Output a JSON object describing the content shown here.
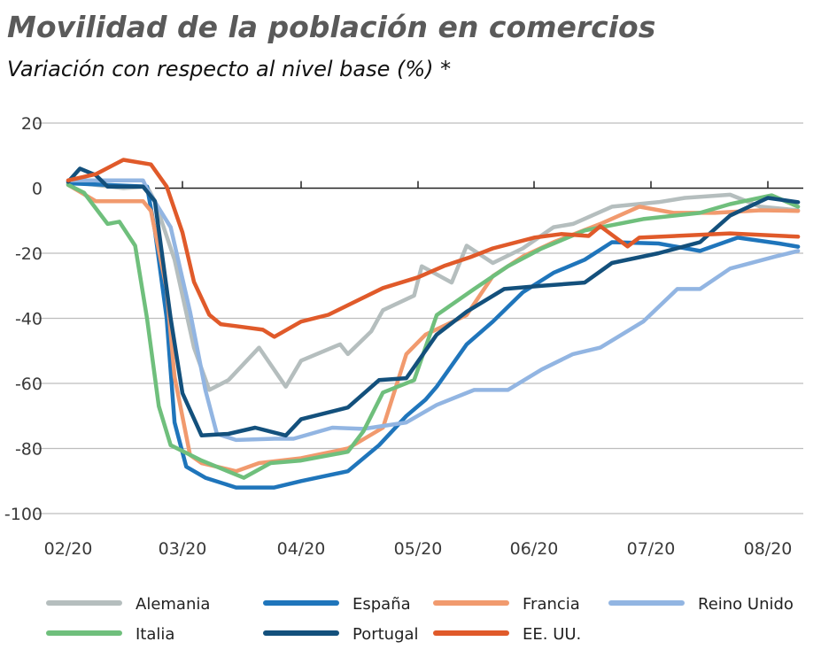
{
  "chart_data": {
    "type": "line",
    "title": "Movilidad de la población en comercios",
    "subtitle": "Variación con respecto al nivel base (%) *",
    "xlabel": "",
    "ylabel": "",
    "ylim": [
      -100,
      20
    ],
    "yticks": [
      20,
      0,
      -20,
      -40,
      -60,
      -80,
      -100
    ],
    "xticks": [
      {
        "label": "02/20",
        "date": "02-01"
      },
      {
        "label": "03/20",
        "date": "03-01"
      },
      {
        "label": "04/20",
        "date": "04-01"
      },
      {
        "label": "05/20",
        "date": "05-01"
      },
      {
        "label": "06/20",
        "date": "06-01"
      },
      {
        "label": "07/20",
        "date": "07-01"
      },
      {
        "label": "08/20",
        "date": "08-01"
      }
    ],
    "grid": true,
    "legend_position": "bottom",
    "series": [
      {
        "name": "Alemania",
        "color": "#b5bebe",
        "points": [
          [
            "02-01",
            2
          ],
          [
            "02-15",
            0
          ],
          [
            "02-21",
            0.5
          ],
          [
            "02-23",
            -4
          ],
          [
            "02-28",
            -22
          ],
          [
            "03-04",
            -49
          ],
          [
            "03-08",
            -62
          ],
          [
            "03-13",
            -59
          ],
          [
            "03-21",
            -49
          ],
          [
            "03-28",
            -61
          ],
          [
            "04-01",
            -53
          ],
          [
            "04-11",
            -48
          ],
          [
            "04-13",
            -51
          ],
          [
            "04-19",
            -44
          ],
          [
            "04-22",
            -37.5
          ],
          [
            "04-30",
            -33
          ],
          [
            "05-02",
            -24
          ],
          [
            "05-10",
            -29
          ],
          [
            "05-14",
            -17.7
          ],
          [
            "05-21",
            -23
          ],
          [
            "05-29",
            -18.5
          ],
          [
            "06-06",
            -12
          ],
          [
            "06-11",
            -11
          ],
          [
            "06-21",
            -5.7
          ],
          [
            "07-03",
            -4.3
          ],
          [
            "07-10",
            -3
          ],
          [
            "07-22",
            -2
          ],
          [
            "07-30",
            -5.7
          ],
          [
            "08-09",
            -6.8
          ]
        ]
      },
      {
        "name": "España",
        "color": "#1f75bb",
        "points": [
          [
            "02-01",
            1.5
          ],
          [
            "02-21",
            0.5
          ],
          [
            "02-23",
            -13
          ],
          [
            "02-26",
            -40
          ],
          [
            "02-28",
            -72
          ],
          [
            "03-02",
            -85.6
          ],
          [
            "03-07",
            -89
          ],
          [
            "03-15",
            -92
          ],
          [
            "03-25",
            -92
          ],
          [
            "04-01",
            -90
          ],
          [
            "04-13",
            -87
          ],
          [
            "04-21",
            -79
          ],
          [
            "04-28",
            -70
          ],
          [
            "05-03",
            -65
          ],
          [
            "05-06",
            -61
          ],
          [
            "05-14",
            -48
          ],
          [
            "05-21",
            -41
          ],
          [
            "05-29",
            -32
          ],
          [
            "06-06",
            -26
          ],
          [
            "06-14",
            -22
          ],
          [
            "06-21",
            -16.6
          ],
          [
            "07-03",
            -17
          ],
          [
            "07-14",
            -19.3
          ],
          [
            "07-24",
            -15.2
          ],
          [
            "08-04",
            -17
          ],
          [
            "08-09",
            -18
          ]
        ]
      },
      {
        "name": "Francia",
        "color": "#f19a6e",
        "points": [
          [
            "02-01",
            1
          ],
          [
            "02-08",
            -4
          ],
          [
            "02-20",
            -4
          ],
          [
            "02-22",
            -7
          ],
          [
            "02-26",
            -31
          ],
          [
            "02-28",
            -58
          ],
          [
            "03-03",
            -82
          ],
          [
            "03-06",
            -84.5
          ],
          [
            "03-15",
            -87
          ],
          [
            "03-21",
            -84.5
          ],
          [
            "04-01",
            -83
          ],
          [
            "04-13",
            -80
          ],
          [
            "04-22",
            -73.6
          ],
          [
            "04-28",
            -51
          ],
          [
            "05-03",
            -45
          ],
          [
            "05-14",
            -39
          ],
          [
            "05-21",
            -27
          ],
          [
            "05-29",
            -21
          ],
          [
            "06-06",
            -16.6
          ],
          [
            "06-18",
            -11
          ],
          [
            "06-28",
            -5.7
          ],
          [
            "07-07",
            -7.6
          ],
          [
            "07-18",
            -7.6
          ],
          [
            "07-30",
            -6.8
          ],
          [
            "08-09",
            -7
          ]
        ]
      },
      {
        "name": "Reino Unido",
        "color": "#92b5e2",
        "points": [
          [
            "02-01",
            2.4
          ],
          [
            "02-20",
            2.4
          ],
          [
            "02-21",
            -0.3
          ],
          [
            "02-27",
            -12
          ],
          [
            "03-03",
            -38
          ],
          [
            "03-07",
            -62
          ],
          [
            "03-10",
            -75.5
          ],
          [
            "03-15",
            -77.4
          ],
          [
            "03-25",
            -77
          ],
          [
            "03-30",
            -77
          ],
          [
            "04-09",
            -73.6
          ],
          [
            "04-17",
            -74
          ],
          [
            "04-28",
            -72
          ],
          [
            "05-06",
            -66.6
          ],
          [
            "05-16",
            -62
          ],
          [
            "05-25",
            -62
          ],
          [
            "06-03",
            -55.7
          ],
          [
            "06-11",
            -51
          ],
          [
            "06-18",
            -49
          ],
          [
            "06-29",
            -41
          ],
          [
            "07-08",
            -31
          ],
          [
            "07-14",
            -31
          ],
          [
            "07-22",
            -24.7
          ],
          [
            "08-03",
            -21
          ],
          [
            "08-09",
            -19.3
          ]
        ]
      },
      {
        "name": "Italia",
        "color": "#6fbf7c",
        "points": [
          [
            "02-01",
            1
          ],
          [
            "02-05",
            -1.4
          ],
          [
            "02-11",
            -11
          ],
          [
            "02-14",
            -10.3
          ],
          [
            "02-18",
            -17.7
          ],
          [
            "02-21",
            -40
          ],
          [
            "02-24",
            -67
          ],
          [
            "02-27",
            -79
          ],
          [
            "03-06",
            -83.7
          ],
          [
            "03-17",
            -89
          ],
          [
            "03-24",
            -84.5
          ],
          [
            "04-01",
            -83.7
          ],
          [
            "04-13",
            -81
          ],
          [
            "04-17",
            -74.7
          ],
          [
            "04-22",
            -62.8
          ],
          [
            "04-30",
            -59
          ],
          [
            "05-06",
            -39
          ],
          [
            "05-16",
            -31
          ],
          [
            "05-25",
            -24
          ],
          [
            "06-03",
            -18.5
          ],
          [
            "06-14",
            -13
          ],
          [
            "06-29",
            -9.5
          ],
          [
            "07-14",
            -7.6
          ],
          [
            "07-22",
            -4.9
          ],
          [
            "08-02",
            -2.2
          ],
          [
            "08-09",
            -5.7
          ]
        ]
      },
      {
        "name": "Portugal",
        "color": "#13507c",
        "points": [
          [
            "02-01",
            2
          ],
          [
            "02-04",
            6
          ],
          [
            "02-08",
            4
          ],
          [
            "02-11",
            0.5
          ],
          [
            "02-20",
            0.5
          ],
          [
            "02-23",
            -4
          ],
          [
            "02-27",
            -40
          ],
          [
            "03-01",
            -63
          ],
          [
            "03-06",
            -76
          ],
          [
            "03-13",
            -75.5
          ],
          [
            "03-20",
            -73.6
          ],
          [
            "03-28",
            -76
          ],
          [
            "04-01",
            -71
          ],
          [
            "04-13",
            -67.4
          ],
          [
            "04-21",
            -59
          ],
          [
            "04-28",
            -58.4
          ],
          [
            "05-06",
            -45
          ],
          [
            "05-14",
            -38
          ],
          [
            "05-24",
            -31
          ],
          [
            "06-03",
            -30
          ],
          [
            "06-14",
            -29
          ],
          [
            "06-21",
            -23
          ],
          [
            "07-03",
            -20
          ],
          [
            "07-14",
            -16.6
          ],
          [
            "07-22",
            -8.4
          ],
          [
            "08-01",
            -3
          ],
          [
            "08-09",
            -4.3
          ]
        ]
      },
      {
        "name": "EE. UU.",
        "color": "#e05a2a",
        "points": [
          [
            "02-01",
            2.4
          ],
          [
            "02-08",
            4.3
          ],
          [
            "02-15",
            8.7
          ],
          [
            "02-22",
            7.3
          ],
          [
            "02-26",
            0.5
          ],
          [
            "03-01",
            -13.6
          ],
          [
            "03-04",
            -28.8
          ],
          [
            "03-08",
            -38.9
          ],
          [
            "03-11",
            -41.8
          ],
          [
            "03-15",
            -42.4
          ],
          [
            "03-22",
            -43.5
          ],
          [
            "03-25",
            -45.7
          ],
          [
            "04-01",
            -41
          ],
          [
            "04-08",
            -38.9
          ],
          [
            "04-15",
            -34.8
          ],
          [
            "04-22",
            -30.7
          ],
          [
            "05-01",
            -27.4
          ],
          [
            "05-08",
            -23.9
          ],
          [
            "05-15",
            -21.2
          ],
          [
            "05-21",
            -18.5
          ],
          [
            "06-01",
            -15.2
          ],
          [
            "06-08",
            -14.1
          ],
          [
            "06-15",
            -14.7
          ],
          [
            "06-18",
            -11.7
          ],
          [
            "06-25",
            -17.9
          ],
          [
            "06-28",
            -15.2
          ],
          [
            "07-22",
            -13.9
          ],
          [
            "08-09",
            -14.9
          ]
        ]
      }
    ]
  }
}
